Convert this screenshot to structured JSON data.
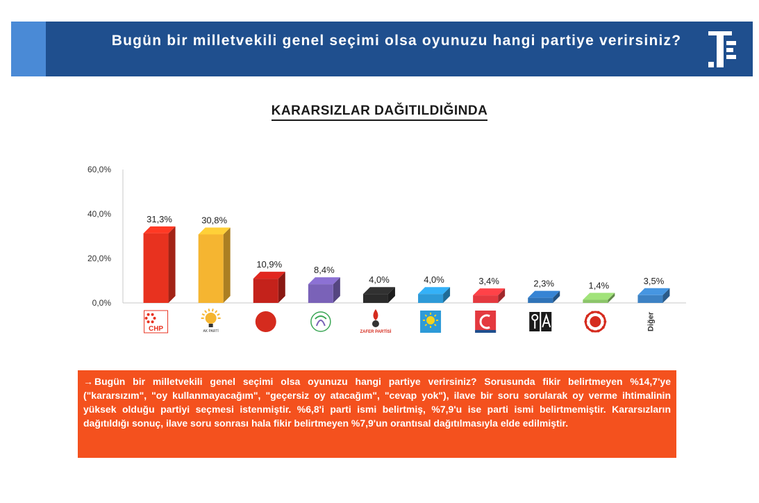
{
  "header": {
    "title": "Bugün bir milletvekili genel seçimi olsa oyunuzu hangi partiye verirsiniz?",
    "accent_color": "#4a8ad6",
    "background_color": "#1f4f8e",
    "logo_icon": "brand-logo-icon"
  },
  "chart_data": {
    "type": "bar",
    "title": "KARARSIZLAR DAĞITILDIĞINDA",
    "categories": [
      "CHP",
      "AK PARTİ",
      "MHP",
      "YEŞİL SOL",
      "ZAFER PARTİSİ",
      "İYİ PARTİ",
      "YENİDEN REFAH",
      "ANAHTAR PARTİ",
      "TİP",
      "Diğer"
    ],
    "values": [
      31.3,
      30.8,
      10.9,
      8.4,
      4.0,
      4.0,
      3.4,
      2.3,
      1.4,
      3.5
    ],
    "value_labels": [
      "31,3%",
      "30,8%",
      "10,9%",
      "8,4%",
      "4,0%",
      "4,0%",
      "3,4%",
      "2,3%",
      "1,4%",
      "3,5%"
    ],
    "colors": [
      "#e8321f",
      "#f5b531",
      "#c4221b",
      "#7a62b8",
      "#2b2b2b",
      "#2d9ad8",
      "#e4393f",
      "#2f73b8",
      "#8cc56a",
      "#3d82c4"
    ],
    "y_ticks": [
      "0,0%",
      "20,0%",
      "40,0%",
      "60,0%"
    ],
    "y_tick_values": [
      0,
      20,
      40,
      60
    ],
    "ylim": [
      0,
      60
    ],
    "xlabel": "",
    "ylabel": "",
    "grid": false,
    "last_category_label": "Diğer"
  },
  "logos": {
    "chp_text": "CHP",
    "akp_text": "AK PARTİ",
    "zafer_text": "ZAFER PARTİSİ"
  },
  "note": {
    "arrow": "→",
    "text": "Bugün bir milletvekili genel seçimi olsa oyunuzu hangi partiye verirsiniz? Sorusunda fikir belirtmeyen %14,7'ye (\"kararsızım\", \"oy kullanmayacağım\", \"geçersiz oy atacağım\", \"cevap yok\"), ilave bir soru sorularak oy verme ihtimalinin yüksek olduğu partiyi seçmesi istenmiştir. %6,8'i parti ismi belirtmiş, %7,9'u ise parti ismi belirtmemiştir. Kararsızların dağıtıldığı sonuç, ilave soru sonrası hala fikir belirtmeyen %7,9'un orantısal dağıtılmasıyla elde edilmiştir."
  }
}
